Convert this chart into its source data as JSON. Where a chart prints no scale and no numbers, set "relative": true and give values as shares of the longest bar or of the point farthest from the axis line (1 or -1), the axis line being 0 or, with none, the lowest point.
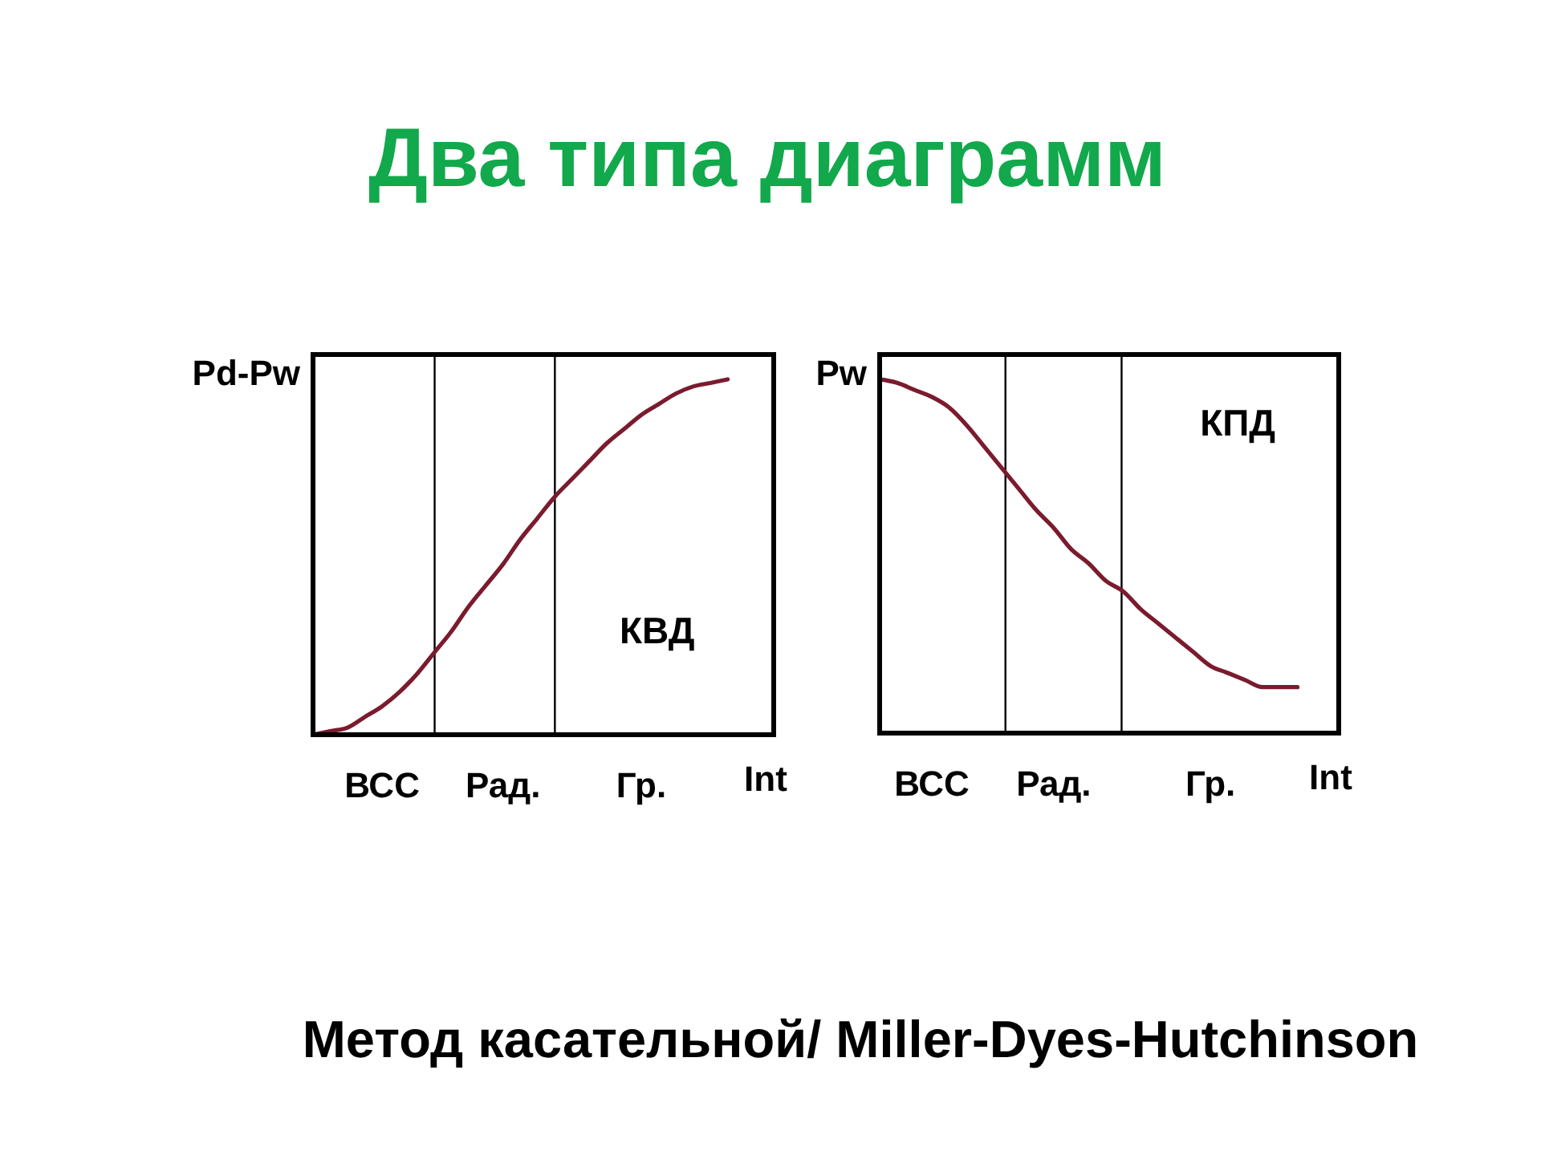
{
  "chart_data": [
    {
      "type": "line",
      "title": "Два типа диаграмм",
      "ylabel": "Pd-Pw",
      "xlabel": "Int",
      "relative": true,
      "categories": [
        null,
        null,
        null,
        null,
        "ВСС",
        null,
        null,
        null,
        null,
        null,
        null,
        "Рад.",
        null,
        null,
        null,
        null,
        null,
        null,
        null,
        "Гр.",
        null,
        null,
        null,
        null,
        null
      ],
      "values": [
        0,
        0.01,
        0.02,
        0.05,
        0.08,
        0.12,
        0.17,
        0.23,
        0.29,
        0.36,
        0.42,
        0.48,
        0.55,
        0.61,
        0.67,
        0.72,
        0.77,
        0.82,
        0.86,
        0.9,
        0.93,
        0.96,
        0.98,
        0.99,
        1
      ],
      "color": "#7b1b2e",
      "tick_labels": "x",
      "annotations": [
        "КВД"
      ]
    },
    {
      "type": "line",
      "ylabel": "Pw",
      "xlabel": "Int",
      "relative": true,
      "categories": [
        null,
        null,
        null,
        "ВСС",
        null,
        null,
        null,
        null,
        null,
        null,
        "Рад.",
        null,
        null,
        null,
        null,
        null,
        null,
        null,
        null,
        "Гр.",
        null,
        null,
        null,
        null,
        null
      ],
      "values": [
        1,
        0.99,
        0.97,
        0.95,
        0.92,
        0.87,
        0.81,
        0.75,
        0.69,
        0.63,
        0.58,
        0.52,
        0.48,
        0.43,
        0.4,
        0.35,
        0.31,
        0.27,
        0.23,
        0.19,
        0.17,
        0.15,
        0.13,
        0.13,
        0.13
      ],
      "color": "#7b1b2e",
      "tick_labels": "x",
      "annotations": [
        "КПД",
        "Метод касательной/ Miller-Dyes-Hutchinson"
      ]
    }
  ]
}
